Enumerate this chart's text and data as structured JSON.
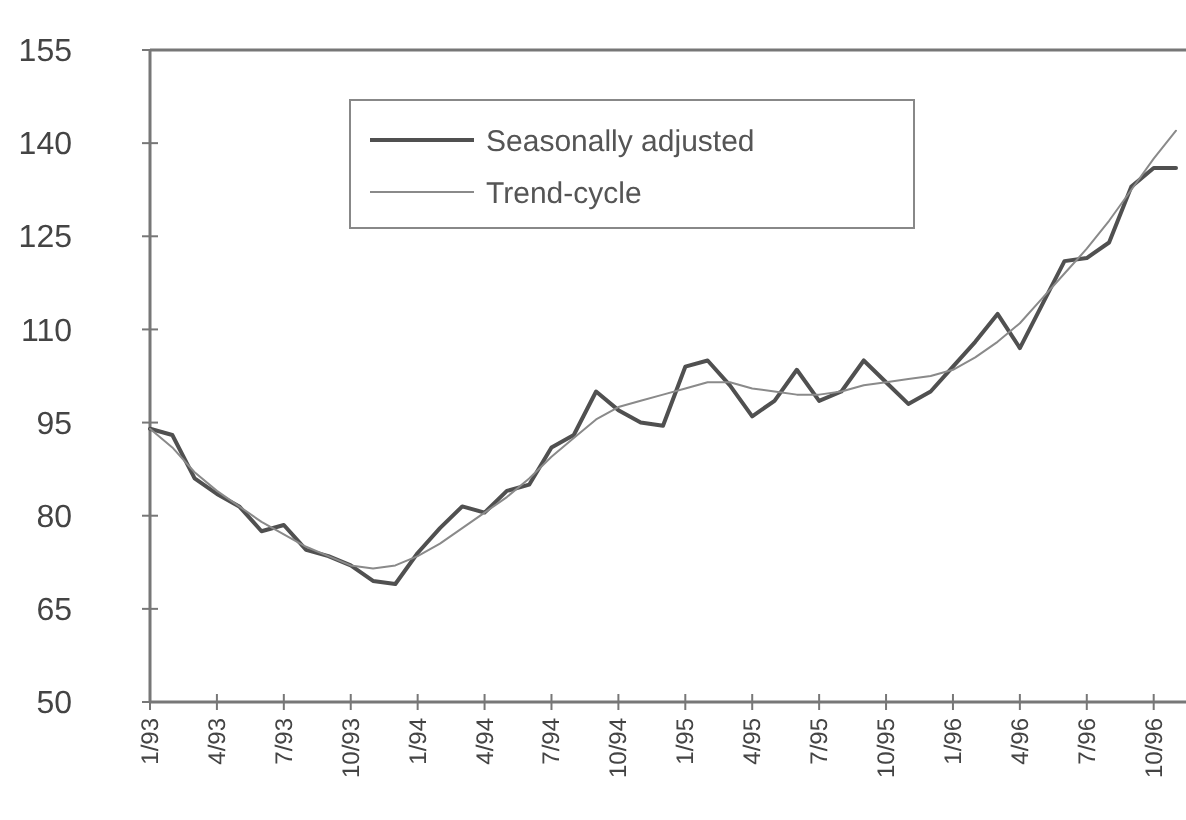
{
  "chart_data": {
    "type": "line",
    "categories": [
      "1/93",
      null,
      null,
      "4/93",
      null,
      null,
      "7/93",
      null,
      null,
      "10/93",
      null,
      null,
      "1/94",
      null,
      null,
      "4/94",
      null,
      null,
      "7/94",
      null,
      null,
      "10/94",
      null,
      null,
      "1/95",
      null,
      null,
      "4/95",
      null,
      null,
      "7/95",
      null,
      null,
      "10/95",
      null,
      null,
      "1/96",
      null,
      null,
      "4/96",
      null,
      null,
      "7/96",
      null,
      null,
      "10/96",
      null
    ],
    "ylim": [
      50,
      155
    ],
    "yticks": [
      50,
      65,
      80,
      95,
      110,
      125,
      140,
      155
    ],
    "grid": false,
    "legend": "top",
    "marker": "none",
    "line_style": "solid",
    "series": [
      {
        "name": "Seasonally adjusted",
        "color": "#505050",
        "values": [
          94,
          93,
          86,
          83.5,
          81.5,
          77.5,
          78.5,
          74.5,
          73.5,
          72,
          69.5,
          69,
          74,
          78,
          81.5,
          80.5,
          84,
          85,
          91,
          93,
          100,
          97,
          95,
          94.5,
          104,
          105,
          101,
          96,
          98.5,
          103.5,
          98.5,
          100,
          105,
          101.5,
          98,
          100,
          104,
          108,
          112.5,
          107,
          114,
          121,
          121.5,
          124,
          133,
          136,
          136
        ]
      },
      {
        "name": "Trend-cycle",
        "color": "#8a8a8a",
        "values": [
          94,
          91,
          87,
          84,
          81.5,
          79,
          77,
          75,
          73.5,
          72,
          71.5,
          72,
          73.5,
          75.5,
          78,
          80.5,
          83,
          86,
          89.5,
          92.5,
          95.5,
          97.5,
          98.5,
          99.5,
          100.5,
          101.5,
          101.5,
          100.5,
          100,
          99.5,
          99.5,
          100,
          101,
          101.5,
          102,
          102.5,
          103.5,
          105.5,
          108,
          111,
          115,
          119,
          123,
          127.5,
          132.5,
          137.5,
          142
        ]
      }
    ]
  }
}
